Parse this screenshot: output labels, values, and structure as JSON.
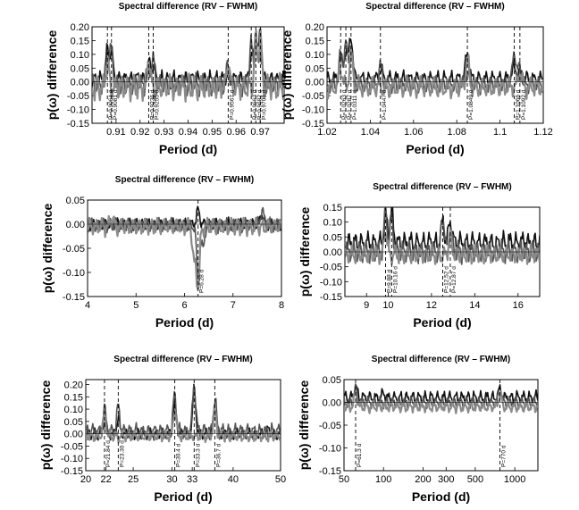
{
  "chart_data": [
    {
      "type": "line",
      "title": "Spectral difference (RV – FWHM)",
      "xlabel": "Period  (d)",
      "ylabel": "p(ω) difference",
      "x_scale": "linear",
      "xlim": [
        0.9,
        0.98
      ],
      "ylim": [
        -0.15,
        0.2
      ],
      "x_ticks": [
        0.91,
        0.92,
        0.93,
        0.94,
        0.95,
        0.96,
        0.97
      ],
      "x_tick_labels": [
        "0.91",
        "0.92",
        "0.93",
        "0.94",
        "0.95",
        "0.96",
        "0.97"
      ],
      "y_ticks": [
        -0.15,
        -0.1,
        -0.05,
        0.0,
        0.05,
        0.1,
        0.15,
        0.2
      ],
      "y_tick_labels": [
        "-0.15",
        "-0.10",
        "-0.05",
        "0.00",
        "0.05",
        "0.10",
        "0.15",
        "0.20"
      ],
      "peaks": [
        {
          "x": 0.9064,
          "label": "P=0.9064 d"
        },
        {
          "x": 0.9081,
          "label": "P=0.9081 d"
        },
        {
          "x": 0.9236,
          "label": "P=0.9236 d"
        },
        {
          "x": 0.9255,
          "label": "P=0.9255 d"
        },
        {
          "x": 0.9567,
          "label": "P=0.9567 d"
        },
        {
          "x": 0.9663,
          "label": "P=0.9663 d"
        },
        {
          "x": 0.9682,
          "label": "P=0.9682 d"
        },
        {
          "x": 0.9701,
          "label": "P=0.9701 d"
        }
      ],
      "series": [
        {
          "name": "black",
          "color": "#111111",
          "baseline": 0.01,
          "noise": 0.02,
          "peaks": [
            [
              0.9064,
              0.12
            ],
            [
              0.9081,
              0.11
            ],
            [
              0.9236,
              0.07
            ],
            [
              0.9255,
              0.06
            ],
            [
              0.9567,
              0.02
            ],
            [
              0.9663,
              0.1
            ],
            [
              0.9682,
              0.18
            ],
            [
              0.9701,
              0.17
            ]
          ]
        },
        {
          "name": "dark-gray",
          "color": "#555555",
          "baseline": -0.01,
          "noise": 0.025,
          "peaks": [
            [
              0.9064,
              0.1
            ],
            [
              0.9081,
              0.12
            ],
            [
              0.9236,
              0.05
            ],
            [
              0.9255,
              0.08
            ],
            [
              0.9567,
              0.06
            ],
            [
              0.9663,
              0.14
            ],
            [
              0.9682,
              0.12
            ],
            [
              0.9701,
              0.12
            ]
          ]
        },
        {
          "name": "gray",
          "color": "#8a8a8a",
          "baseline": -0.02,
          "noise": 0.03,
          "peaks": [
            [
              0.9064,
              0.07
            ],
            [
              0.9236,
              0.09
            ],
            [
              0.9567,
              0.07
            ],
            [
              0.9682,
              0.15
            ],
            [
              0.9701,
              0.16
            ]
          ]
        }
      ]
    },
    {
      "type": "line",
      "title": "Spectral difference (RV – FWHM)",
      "xlabel": "Period  (d)",
      "ylabel": "p(ω) difference",
      "x_scale": "linear",
      "xlim": [
        1.02,
        1.12
      ],
      "ylim": [
        -0.15,
        0.2
      ],
      "x_ticks": [
        1.02,
        1.04,
        1.06,
        1.08,
        1.1,
        1.12
      ],
      "x_tick_labels": [
        "1.02",
        "1.04",
        "1.06",
        "1.08",
        "1.1",
        "1.12"
      ],
      "y_ticks": [
        -0.15,
        -0.1,
        -0.05,
        0.0,
        0.05,
        0.1,
        0.15,
        0.2
      ],
      "y_tick_labels": [
        "-0.15",
        "-0.10",
        "-0.05",
        "0.00",
        "0.05",
        "0.10",
        "0.15",
        "0.20"
      ],
      "peaks": [
        {
          "x": 1.0263,
          "label": "P=1.0263 d"
        },
        {
          "x": 1.0287,
          "label": "P=1.0287 d"
        },
        {
          "x": 1.0311,
          "label": "P=1.0311 d"
        },
        {
          "x": 1.0447,
          "label": "P=1.0447 d"
        },
        {
          "x": 1.0849,
          "label": "P=1.0849 d"
        },
        {
          "x": 1.1066,
          "label": "P=1.1066 d"
        },
        {
          "x": 1.1092,
          "label": "P=1.1092 d"
        }
      ],
      "series": [
        {
          "name": "black",
          "color": "#111111",
          "baseline": 0.01,
          "noise": 0.02,
          "peaks": [
            [
              1.0263,
              0.08
            ],
            [
              1.0287,
              0.12
            ],
            [
              1.0311,
              0.17
            ],
            [
              1.0447,
              0.05
            ],
            [
              1.0849,
              0.11
            ],
            [
              1.1066,
              0.06
            ],
            [
              1.1092,
              0.03
            ]
          ]
        },
        {
          "name": "dark-gray",
          "color": "#555555",
          "baseline": -0.01,
          "noise": 0.02,
          "peaks": [
            [
              1.0263,
              0.1
            ],
            [
              1.0287,
              0.14
            ],
            [
              1.0311,
              0.13
            ],
            [
              1.0447,
              0.06
            ],
            [
              1.0849,
              0.04
            ],
            [
              1.1066,
              0.12
            ],
            [
              1.1092,
              0.06
            ]
          ]
        },
        {
          "name": "gray",
          "color": "#8a8a8a",
          "baseline": -0.02,
          "noise": 0.025,
          "peaks": [
            [
              1.0263,
              0.06
            ],
            [
              1.0311,
              0.1
            ],
            [
              1.0849,
              0.08
            ],
            [
              1.1092,
              0.04
            ]
          ]
        }
      ]
    },
    {
      "type": "line",
      "title": "Spectral difference (RV – FWHM)",
      "xlabel": "Period  (d)",
      "ylabel": "p(ω) difference",
      "x_scale": "linear",
      "xlim": [
        4,
        8
      ],
      "ylim": [
        -0.15,
        0.05
      ],
      "x_ticks": [
        4,
        5,
        6,
        7,
        8
      ],
      "x_tick_labels": [
        "4",
        "5",
        "6",
        "7",
        "8"
      ],
      "y_ticks": [
        -0.15,
        -0.1,
        -0.05,
        0.0,
        0.05
      ],
      "y_tick_labels": [
        "-0.15",
        "-0.10",
        "-0.05",
        "0.00",
        "0.05"
      ],
      "peaks": [
        {
          "x": 6.28,
          "label": "P=6.28 d"
        }
      ],
      "series": [
        {
          "name": "black",
          "color": "#111111",
          "baseline": 0.0,
          "noise": 0.008,
          "peaks": [
            [
              6.28,
              0.03
            ],
            [
              7.6,
              0.02
            ]
          ]
        },
        {
          "name": "dark-gray",
          "color": "#555555",
          "baseline": -0.002,
          "noise": 0.01,
          "peaks": [
            [
              6.28,
              -0.11
            ],
            [
              6.38,
              -0.05
            ],
            [
              7.6,
              0.03
            ]
          ]
        },
        {
          "name": "gray",
          "color": "#8a8a8a",
          "baseline": -0.005,
          "noise": 0.012,
          "peaks": [
            [
              6.2,
              -0.08
            ],
            [
              6.28,
              -0.13
            ],
            [
              4.5,
              0.015
            ]
          ]
        }
      ]
    },
    {
      "type": "line",
      "title": "Spectral difference (RV – FWHM)",
      "xlabel": "Period  (d)",
      "ylabel": "p(ω) difference",
      "x_scale": "linear",
      "xlim": [
        8,
        17
      ],
      "ylim": [
        -0.15,
        0.15
      ],
      "x_ticks": [
        9,
        10,
        12,
        14,
        16
      ],
      "x_tick_labels": [
        "9",
        "10",
        "12",
        "14",
        "16"
      ],
      "y_ticks": [
        -0.15,
        -0.1,
        -0.05,
        0.0,
        0.05,
        0.1,
        0.15
      ],
      "y_tick_labels": [
        "-0.15",
        "-0.10",
        "-0.05",
        "0.00",
        "0.05",
        "0.10",
        "0.15"
      ],
      "peaks": [
        {
          "x": 9.88,
          "label": "P=9.88 d"
        },
        {
          "x": 10.16,
          "label": "P=10.16 d"
        },
        {
          "x": 12.52,
          "label": "P=12.52 d"
        },
        {
          "x": 12.87,
          "label": "P=12.87 d"
        }
      ],
      "series": [
        {
          "name": "black",
          "color": "#111111",
          "baseline": 0.03,
          "noise": 0.025,
          "peaks": [
            [
              9.88,
              0.13
            ],
            [
              10.16,
              0.14
            ],
            [
              12.52,
              0.1
            ],
            [
              12.87,
              0.11
            ],
            [
              16.3,
              0.04
            ]
          ]
        },
        {
          "name": "dark-gray",
          "color": "#555555",
          "baseline": 0.0,
          "noise": 0.025,
          "peaks": [
            [
              9.88,
              0.14
            ],
            [
              10.16,
              0.12
            ],
            [
              12.52,
              0.13
            ],
            [
              12.87,
              0.08
            ]
          ]
        },
        {
          "name": "gray",
          "color": "#8a8a8a",
          "baseline": -0.01,
          "noise": 0.02,
          "peaks": [
            [
              9.88,
              0.07
            ],
            [
              12.87,
              0.06
            ]
          ]
        }
      ]
    },
    {
      "type": "line",
      "title": "Spectral difference (RV – FWHM)",
      "xlabel": "Period  (d)",
      "ylabel": "p(ω) difference",
      "x_scale": "log",
      "xlim": [
        20,
        50
      ],
      "ylim": [
        -0.15,
        0.22
      ],
      "x_ticks": [
        20,
        22,
        25,
        30,
        33,
        40,
        50
      ],
      "x_tick_labels": [
        "20",
        "22",
        "25",
        "30",
        "33",
        "40",
        "50"
      ],
      "y_ticks": [
        -0.15,
        -0.1,
        -0.05,
        0.0,
        0.05,
        0.1,
        0.15,
        0.2
      ],
      "y_tick_labels": [
        "-0.15",
        "-0.10",
        "-0.05",
        "0.00",
        "0.05",
        "0.10",
        "0.15",
        "0.20"
      ],
      "peaks": [
        {
          "x": 21.84,
          "label": "P=21.84 d"
        },
        {
          "x": 23.3,
          "label": "P=23.30 d"
        },
        {
          "x": 30.4,
          "label": "P=30.4 d"
        },
        {
          "x": 33.3,
          "label": "P=33.3 d"
        },
        {
          "x": 36.7,
          "label": "P=36.7 d"
        }
      ],
      "series": [
        {
          "name": "black",
          "color": "#111111",
          "baseline": 0.0,
          "noise": 0.015,
          "peaks": [
            [
              21.84,
              0.05
            ],
            [
              23.3,
              0.06
            ],
            [
              30.4,
              0.12
            ],
            [
              33.3,
              0.18
            ],
            [
              36.7,
              0.1
            ],
            [
              47,
              0.02
            ]
          ]
        },
        {
          "name": "dark-gray",
          "color": "#555555",
          "baseline": 0.01,
          "noise": 0.02,
          "peaks": [
            [
              21.84,
              0.1
            ],
            [
              23.3,
              0.11
            ],
            [
              30.4,
              0.17
            ],
            [
              33.3,
              0.21
            ],
            [
              36.7,
              0.14
            ]
          ]
        },
        {
          "name": "gray",
          "color": "#8a8a8a",
          "baseline": -0.01,
          "noise": 0.015,
          "peaks": [
            [
              21.84,
              0.07
            ],
            [
              30.4,
              0.1
            ],
            [
              36.7,
              0.09
            ]
          ]
        }
      ]
    },
    {
      "type": "line",
      "title": "Spectral difference (RV – FWHM)",
      "xlabel": "Period  (d)",
      "ylabel": "p(ω) difference",
      "x_scale": "log",
      "xlim": [
        50,
        1500
      ],
      "ylim": [
        -0.15,
        0.05
      ],
      "x_ticks": [
        50,
        100,
        200,
        300,
        500,
        1000
      ],
      "x_tick_labels": [
        "50",
        "100",
        "200",
        "300",
        "500",
        "1000"
      ],
      "y_ticks": [
        -0.15,
        -0.1,
        -0.05,
        0.0,
        0.05
      ],
      "y_tick_labels": [
        "-0.15",
        "-0.10",
        "-0.05",
        "0.00",
        "0.05"
      ],
      "peaks": [
        {
          "x": 61.3,
          "label": "P=61.3 d"
        },
        {
          "x": 770,
          "label": "P=770 d"
        }
      ],
      "series": [
        {
          "name": "black",
          "color": "#111111",
          "baseline": 0.01,
          "noise": 0.01,
          "peaks": [
            [
              61.3,
              0.035
            ],
            [
              100,
              0.02
            ],
            [
              770,
              0.03
            ]
          ]
        },
        {
          "name": "dark-gray",
          "color": "#555555",
          "baseline": 0.0,
          "noise": 0.008,
          "peaks": [
            [
              61.3,
              0.03
            ],
            [
              770,
              0.025
            ]
          ]
        },
        {
          "name": "gray",
          "color": "#8a8a8a",
          "baseline": -0.01,
          "noise": 0.008,
          "peaks": [
            [
              61.3,
              0.02
            ],
            [
              770,
              0.02
            ]
          ]
        }
      ]
    }
  ]
}
